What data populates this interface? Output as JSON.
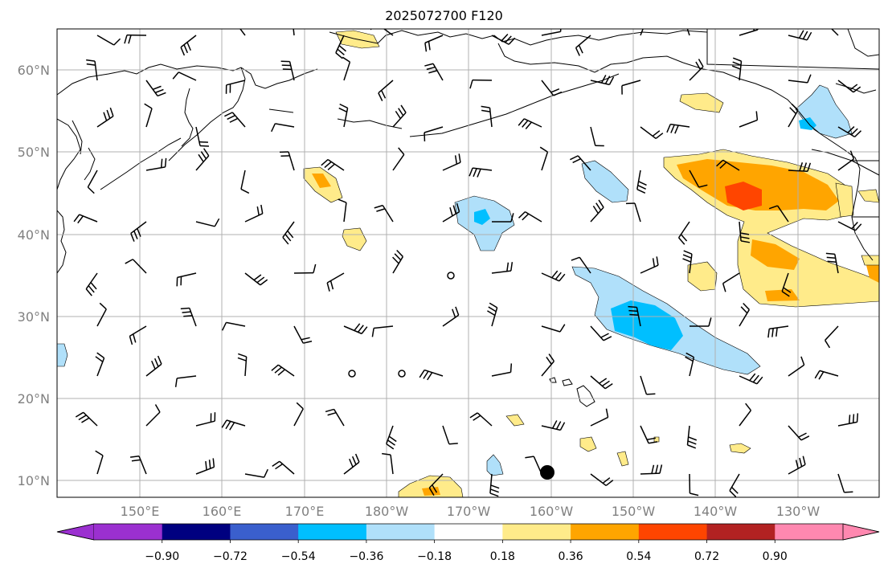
{
  "title": "2025072700 F120",
  "lat_labels": [
    "60°N",
    "50°N",
    "40°N",
    "30°N",
    "20°N",
    "10°N"
  ],
  "lon_labels": [
    "150°E",
    "160°E",
    "170°E",
    "180°W",
    "170°W",
    "160°W",
    "150°W",
    "140°W",
    "130°W"
  ],
  "colorbar": {
    "levels": [
      "−0.90",
      "−0.72",
      "−0.54",
      "−0.36",
      "−0.18",
      "0.18",
      "0.36",
      "0.54",
      "0.72",
      "0.90"
    ],
    "colors": [
      "#9b30d0",
      "#000080",
      "#3a5fcd",
      "#00bfff",
      "#b0e0fa",
      "#ffffff",
      "#ffeb8a",
      "#ffa500",
      "#ff4500",
      "#b22222",
      "#ff88b0"
    ]
  },
  "colors": {
    "grid": "#b0b0b0",
    "coast": "#000000",
    "axis_label": "#808080"
  }
}
